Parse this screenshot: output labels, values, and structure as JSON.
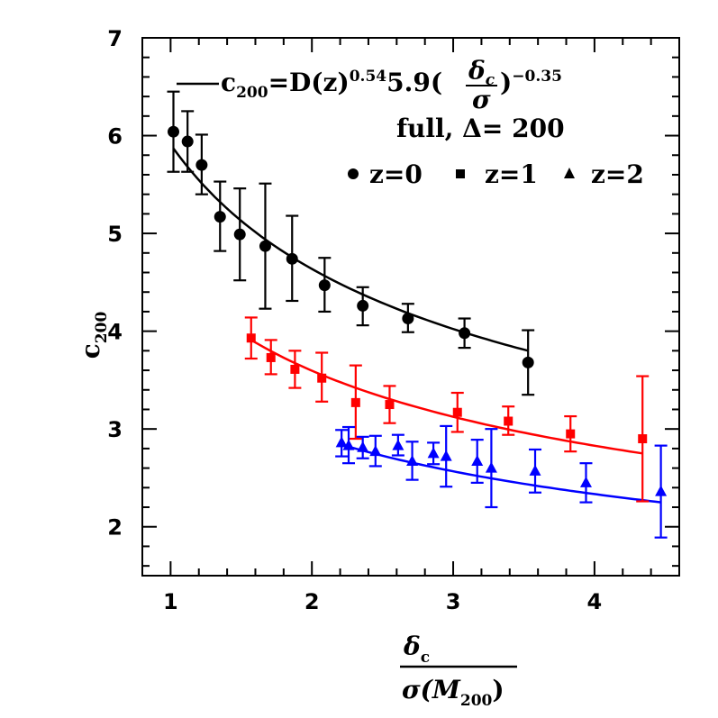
{
  "chart_data": {
    "type": "scatter",
    "title": "",
    "xlabel": {
      "numerator": "δ",
      "numerator_sub": "c",
      "denominator": "σ(M",
      "denominator_sub": "200",
      "denominator_close": ")"
    },
    "ylabel": {
      "main": "c",
      "sub": "200"
    },
    "xlim": [
      0.8,
      4.6
    ],
    "ylim": [
      1.5,
      7.0
    ],
    "xticks": [
      1,
      2,
      3,
      4
    ],
    "yticks": [
      2,
      3,
      4,
      5,
      6,
      7
    ],
    "grid": false,
    "legend_position": "top-right",
    "annotations": {
      "fit_formula": {
        "lhs": "c",
        "lhs_sub": "200",
        "eq": "=D(z)",
        "exp1": "0.54",
        "coef": "5.9(",
        "frac_num": "δ",
        "frac_num_sub": "c",
        "frac_den": "σ",
        "close": ")",
        "exp2": "−0.35"
      },
      "sample_label": "full, Δ=  200"
    },
    "series": [
      {
        "name": "z=0",
        "marker": "circle",
        "color": "#000000",
        "x": [
          1.02,
          1.12,
          1.22,
          1.35,
          1.49,
          1.67,
          1.86,
          2.09,
          2.36,
          2.68,
          3.08,
          3.53
        ],
        "y": [
          6.04,
          5.94,
          5.7,
          5.17,
          4.99,
          4.87,
          4.74,
          4.47,
          4.26,
          4.13,
          3.98,
          3.68
        ],
        "yerr_low": [
          5.63,
          5.63,
          5.4,
          4.82,
          4.52,
          4.23,
          4.31,
          4.2,
          4.06,
          3.99,
          3.83,
          3.35
        ],
        "yerr_high": [
          6.45,
          6.25,
          6.01,
          5.53,
          5.46,
          5.51,
          5.18,
          4.75,
          4.45,
          4.28,
          4.13,
          4.01
        ]
      },
      {
        "name": "z=1",
        "marker": "square",
        "color": "#ff0000",
        "x": [
          1.57,
          1.71,
          1.88,
          2.07,
          2.31,
          2.55,
          3.03,
          3.39,
          3.83,
          4.34
        ],
        "y": [
          3.93,
          3.73,
          3.61,
          3.52,
          3.27,
          3.25,
          3.17,
          3.08,
          2.95,
          2.9
        ],
        "yerr_low": [
          3.72,
          3.56,
          3.42,
          3.28,
          2.9,
          3.06,
          2.97,
          2.94,
          2.77,
          2.26
        ],
        "yerr_high": [
          4.14,
          3.91,
          3.8,
          3.78,
          3.65,
          3.44,
          3.37,
          3.23,
          3.13,
          3.54
        ]
      },
      {
        "name": "z=2",
        "marker": "triangle",
        "color": "#0000ff",
        "x": [
          2.21,
          2.26,
          2.36,
          2.45,
          2.61,
          2.71,
          2.86,
          2.95,
          3.17,
          3.27,
          3.58,
          3.94,
          4.47
        ],
        "y": [
          2.86,
          2.83,
          2.81,
          2.77,
          2.83,
          2.67,
          2.75,
          2.72,
          2.67,
          2.6,
          2.57,
          2.45,
          2.36
        ],
        "yerr_low": [
          2.72,
          2.65,
          2.7,
          2.62,
          2.73,
          2.48,
          2.64,
          2.41,
          2.45,
          2.2,
          2.35,
          2.25,
          1.89
        ],
        "yerr_high": [
          2.99,
          3.02,
          2.92,
          2.93,
          2.94,
          2.87,
          2.86,
          3.03,
          2.89,
          3.0,
          2.79,
          2.65,
          2.83
        ]
      }
    ],
    "fit_lines": [
      {
        "color": "#000000",
        "x_start": 1.02,
        "x_end": 3.53,
        "y_start": 5.87,
        "y_end": 3.8
      },
      {
        "color": "#ff0000",
        "x_start": 1.57,
        "x_end": 4.34,
        "y_start": 3.91,
        "y_end": 2.75
      },
      {
        "color": "#0000ff",
        "x_start": 2.21,
        "x_end": 4.47,
        "y_start": 2.84,
        "y_end": 2.25
      }
    ]
  }
}
